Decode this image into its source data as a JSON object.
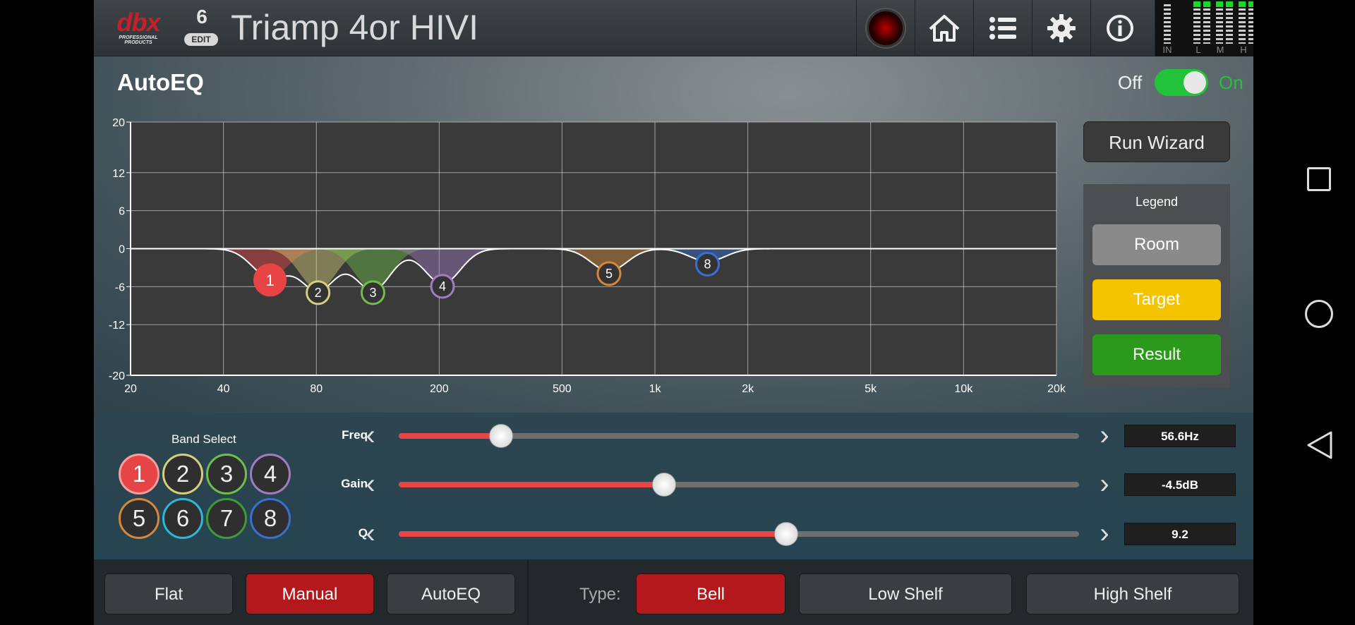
{
  "header": {
    "brand": "dbx",
    "brand_sub": "PROFESSIONAL PRODUCTS",
    "preset_number": "6",
    "edit_label": "EDIT",
    "title": "Triamp 4or HIVI",
    "meters": [
      "IN",
      "L",
      "M",
      "H"
    ]
  },
  "autoeq": {
    "title": "AutoEQ",
    "toggle_off": "Off",
    "toggle_on": "On",
    "toggle_state": "on"
  },
  "graph": {
    "y_ticks": [
      "20",
      "12",
      "6",
      "0",
      "-6",
      "-12",
      "-20"
    ],
    "x_ticks": [
      "20",
      "40",
      "80",
      "200",
      "500",
      "1k",
      "2k",
      "5k",
      "10k",
      "20k"
    ],
    "bands": [
      {
        "id": "1",
        "freq": 56.6,
        "gain": -4.5,
        "color": "#e74545"
      },
      {
        "id": "2",
        "freq": 81,
        "gain": -6.5,
        "color": "#d6d07a"
      },
      {
        "id": "3",
        "freq": 122,
        "gain": -6.5,
        "color": "#6fbf4a"
      },
      {
        "id": "4",
        "freq": 205,
        "gain": -5.5,
        "color": "#a07cc0"
      },
      {
        "id": "5",
        "freq": 710,
        "gain": -3.5,
        "color": "#d4893a"
      },
      {
        "id": "8",
        "freq": 1480,
        "gain": -2.0,
        "color": "#3a6fd4"
      }
    ]
  },
  "wizard_label": "Run Wizard",
  "legend": {
    "title": "Legend",
    "room": "Room",
    "target": "Target",
    "result": "Result"
  },
  "band_select": {
    "label": "Band Select",
    "bands": [
      {
        "label": "1",
        "color": "#f4a0a0"
      },
      {
        "label": "2",
        "color": "#d6d07a"
      },
      {
        "label": "3",
        "color": "#6fbf4a"
      },
      {
        "label": "4",
        "color": "#a07cc0"
      },
      {
        "label": "5",
        "color": "#d4893a"
      },
      {
        "label": "6",
        "color": "#2fb8d6"
      },
      {
        "label": "7",
        "color": "#3f9a3a"
      },
      {
        "label": "8",
        "color": "#3a6fd4"
      }
    ],
    "active": "1"
  },
  "params": {
    "freq": {
      "label": "Freq",
      "value": "56.6Hz",
      "level": 0.15
    },
    "gain": {
      "label": "Gain",
      "value": "-4.5dB",
      "level": 0.39
    },
    "q": {
      "label": "Q",
      "value": "9.2",
      "level": 0.57
    }
  },
  "bottom": {
    "flat": "Flat",
    "manual": "Manual",
    "autoeq": "AutoEQ",
    "type_label": "Type:",
    "bell": "Bell",
    "low_shelf": "Low Shelf",
    "high_shelf": "High Shelf"
  }
}
